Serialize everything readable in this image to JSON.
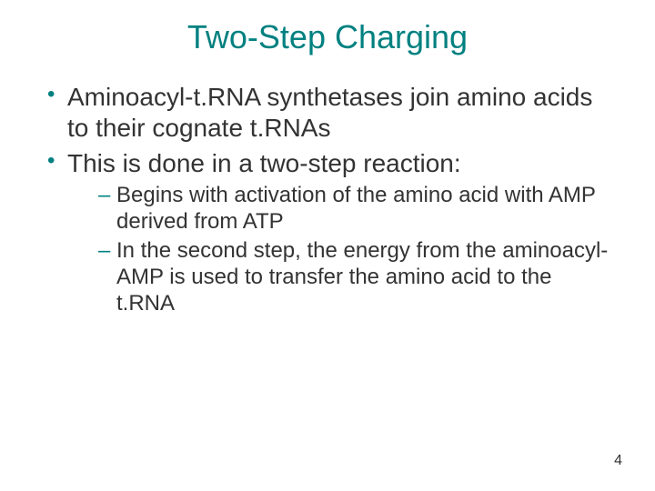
{
  "slide": {
    "title": "Two-Step Charging",
    "bullets": [
      {
        "text": "Aminoacyl-t.RNA synthetases join amino acids to their cognate t.RNAs"
      },
      {
        "text": "This is done in a two-step reaction:",
        "subBullets": [
          "Begins with activation of the amino acid with AMP derived from ATP",
          "In the second step, the energy from the aminoacyl-AMP is used to transfer the amino acid to the t.RNA"
        ]
      }
    ],
    "pageNumber": "4"
  },
  "colors": {
    "title": "#008080",
    "bullet_marker": "#008080",
    "body_text": "#333333",
    "background": "#ffffff"
  },
  "typography": {
    "title_fontsize": 36,
    "bullet_fontsize": 28,
    "sub_bullet_fontsize": 24,
    "page_number_fontsize": 16,
    "font_family": "Arial"
  }
}
